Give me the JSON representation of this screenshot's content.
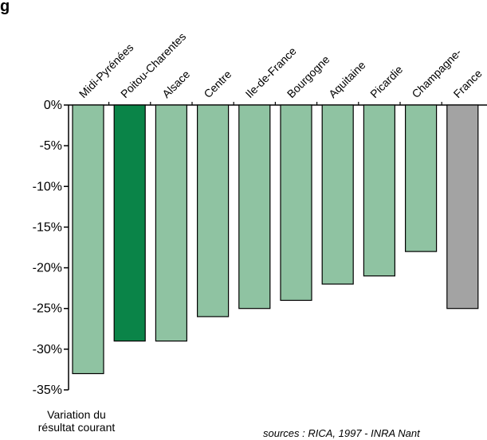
{
  "chart_data": {
    "type": "bar",
    "title_fragment": "g",
    "categories": [
      "Midi-Pyrénées",
      "Poitou-Charentes",
      "Alsace",
      "Centre",
      "Ile-de-France",
      "Bourgogne",
      "Aquitaine",
      "Picardie",
      "Champagne-",
      "France"
    ],
    "values": [
      -33,
      -29,
      -29,
      -26,
      -25,
      -24,
      -22,
      -21,
      -18,
      -25
    ],
    "bar_colors": [
      "#8fc3a2",
      "#0a8448",
      "#8fc3a2",
      "#8fc3a2",
      "#8fc3a2",
      "#8fc3a2",
      "#8fc3a2",
      "#8fc3a2",
      "#8fc3a2",
      "#a3a3a3"
    ],
    "ylim": [
      -35,
      0
    ],
    "yticks": [
      0,
      -5,
      -10,
      -15,
      -20,
      -25,
      -30,
      -35
    ],
    "ytick_labels": [
      "0%",
      "-5%",
      "-10%",
      "-15%",
      "-20%",
      "-25%",
      "-30%",
      "-35%"
    ],
    "ylabel_line1": "Variation du",
    "ylabel_line2": "résultat courant",
    "source_text": "sources : RICA, 1997 - INRA Nant",
    "grid": false
  }
}
